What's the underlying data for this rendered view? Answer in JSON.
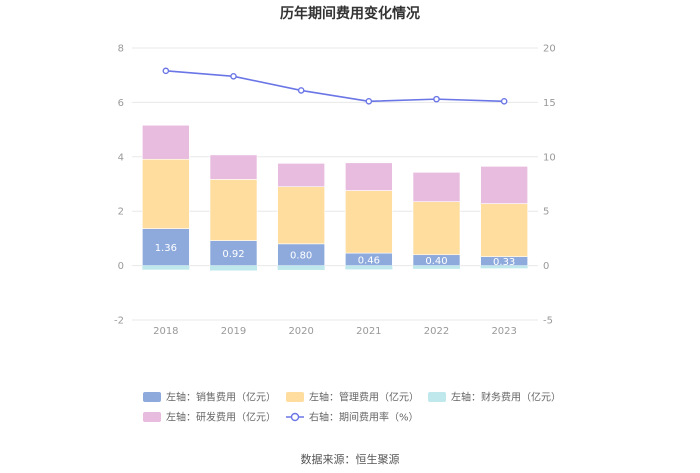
{
  "chart_data": {
    "type": "bar",
    "title": "历年期间费用变化情况",
    "source": "数据来源：恒生聚源",
    "categories": [
      "2018",
      "2019",
      "2020",
      "2021",
      "2022",
      "2023"
    ],
    "left_axis": {
      "min": -2,
      "max": 8,
      "ticks": [
        "8",
        "6",
        "4",
        "2",
        "0",
        "-2"
      ],
      "tick_values": [
        8,
        6,
        4,
        2,
        0,
        -2
      ]
    },
    "right_axis": {
      "min": -5,
      "max": 20,
      "ticks": [
        "20",
        "15",
        "10",
        "5",
        "0",
        "-5"
      ],
      "tick_values": [
        20,
        15,
        10,
        5,
        0,
        -5
      ]
    },
    "series": [
      {
        "key": "sales",
        "name": "左轴：销售费用（亿元）",
        "axis": "left",
        "color": "#8eaadc",
        "values": [
          1.36,
          0.92,
          0.8,
          0.46,
          0.4,
          0.33
        ],
        "labels": [
          "1.36",
          "0.92",
          "0.80",
          "0.46",
          "0.40",
          "0.33"
        ]
      },
      {
        "key": "admin",
        "name": "左轴：管理费用（亿元）",
        "axis": "left",
        "color": "#fedd9e",
        "values": [
          2.55,
          2.25,
          2.1,
          2.3,
          1.95,
          1.95
        ]
      },
      {
        "key": "finance",
        "name": "左轴：财务费用（亿元）",
        "axis": "left",
        "color": "#bfe8ec",
        "values": [
          -0.15,
          -0.18,
          -0.16,
          -0.14,
          -0.12,
          -0.1
        ]
      },
      {
        "key": "rd",
        "name": "左轴：研发费用（亿元）",
        "axis": "left",
        "color": "#e7bcdf",
        "values": [
          1.25,
          0.9,
          0.86,
          1.02,
          1.08,
          1.37
        ]
      },
      {
        "key": "rate",
        "name": "右轴：期间费用率（%）",
        "axis": "right",
        "type": "line",
        "color": "#6b76e6",
        "values": [
          17.9,
          17.4,
          16.1,
          15.1,
          15.3,
          15.1
        ]
      }
    ]
  }
}
